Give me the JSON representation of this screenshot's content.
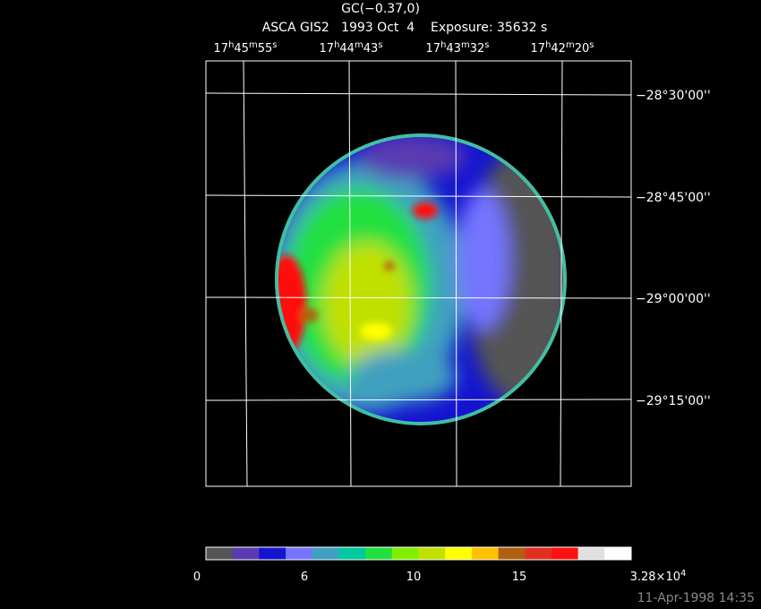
{
  "title": "GC(−0.37,0)",
  "subtitle": "ASCA GIS2   1993 Oct  4    Exposure: 35632 s",
  "ra_labels": [
    [
      "17",
      "h",
      "45",
      "m",
      "55",
      "s"
    ],
    [
      "17",
      "h",
      "44",
      "m",
      "43",
      "s"
    ],
    [
      "17",
      "h",
      "43",
      "m",
      "32",
      "s"
    ],
    [
      "17",
      "h",
      "42",
      "m",
      "20",
      "s"
    ]
  ],
  "dec_labels": [
    "−28°30'00''",
    "−28°45'00''",
    "−29°00'00''",
    "−29°15'00''"
  ],
  "colorbar": {
    "colors": [
      "#555555",
      "#5a3ab0",
      "#1414d0",
      "#7474ff",
      "#40a0c0",
      "#00c8a0",
      "#20e040",
      "#80f000",
      "#c0e000",
      "#ffff00",
      "#ffc000",
      "#b06010",
      "#e03020",
      "#ff1010",
      "#e0e0e0",
      "#ffffff"
    ],
    "labels": [
      [
        "0"
      ],
      [
        "6"
      ],
      [
        "10"
      ],
      [
        "15"
      ],
      [
        "3.28×10",
        "4"
      ]
    ]
  },
  "timestamp": "11-Apr-1998 14:35"
}
